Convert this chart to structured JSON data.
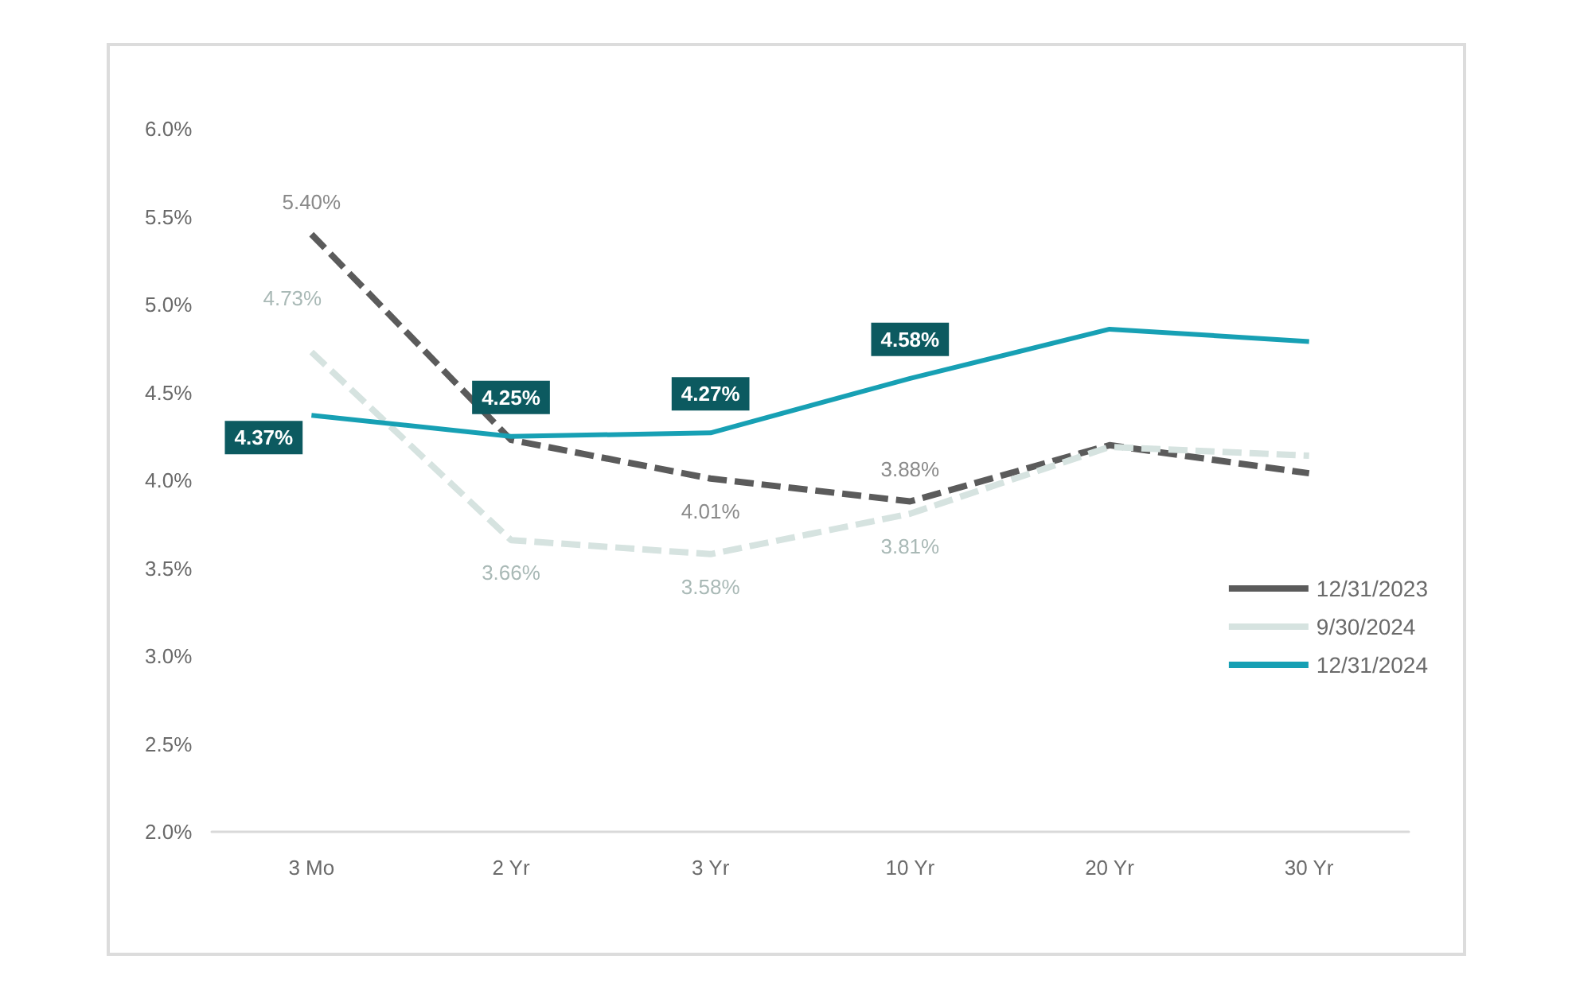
{
  "chart_data": {
    "type": "line",
    "categories": [
      "3 Mo",
      "2 Yr",
      "3 Yr",
      "10 Yr",
      "20 Yr",
      "30 Yr"
    ],
    "series": [
      {
        "name": "12/31/2023",
        "color": "#5b5b5b",
        "line_style": "dashed",
        "values": [
          5.4,
          4.23,
          4.01,
          3.88,
          4.2,
          4.04
        ],
        "value_labels": [
          "5.40%",
          null,
          "4.01%",
          "3.88%",
          null,
          null
        ]
      },
      {
        "name": "9/30/2024",
        "color": "#d6e3e0",
        "line_style": "dashed",
        "values": [
          4.73,
          3.66,
          3.58,
          3.81,
          4.19,
          4.14
        ],
        "value_labels": [
          "4.73%",
          "3.66%",
          "3.58%",
          "3.81%",
          null,
          null
        ]
      },
      {
        "name": "12/31/2024",
        "color": "#17a0b4",
        "line_style": "solid",
        "values": [
          4.37,
          4.25,
          4.27,
          4.58,
          4.86,
          4.79
        ],
        "value_labels": [
          "4.37%",
          "4.25%",
          "4.27%",
          "4.58%",
          null,
          null
        ]
      }
    ],
    "ylim": [
      2.0,
      6.0
    ],
    "yticks": [
      {
        "value": 2.0,
        "label": "2.0%"
      },
      {
        "value": 2.5,
        "label": "2.5%"
      },
      {
        "value": 3.0,
        "label": "3.0%"
      },
      {
        "value": 3.5,
        "label": "3.5%"
      },
      {
        "value": 4.0,
        "label": "4.0%"
      },
      {
        "value": 4.5,
        "label": "4.5%"
      },
      {
        "value": 5.0,
        "label": "5.0%"
      },
      {
        "value": 5.5,
        "label": "5.5%"
      },
      {
        "value": 6.0,
        "label": "6.0%"
      }
    ],
    "grid": false,
    "legend": "right",
    "marker": "none"
  }
}
